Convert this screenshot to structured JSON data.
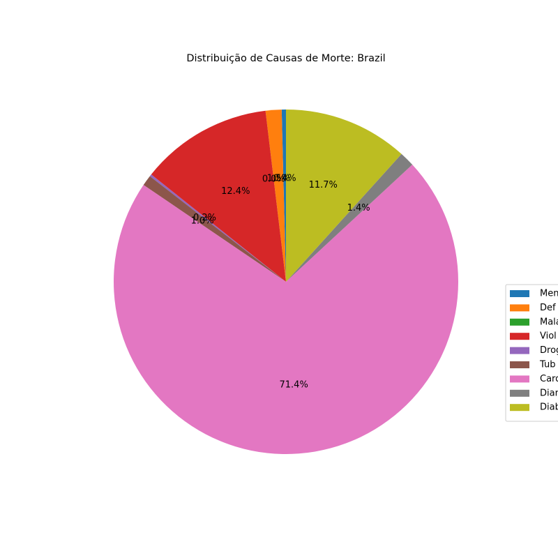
{
  "chart_data": {
    "type": "pie",
    "title": "Distribuição de Causas de Morte: Brazil",
    "legend_placement": "right",
    "start_angle_deg": 90,
    "direction": "counterclockwise",
    "slices": [
      {
        "label": "Meningite",
        "legend_text": "Men",
        "value": 0.4,
        "label_text": "0.4%",
        "color": "#1f77b4"
      },
      {
        "label": "Deficiências nutricionais",
        "legend_text": "Def",
        "value": 1.5,
        "label_text": "1.5%",
        "color": "#ff7f0e"
      },
      {
        "label": "Malária",
        "legend_text": "Mala",
        "value": 0.0,
        "label_text": "0.0%",
        "color": "#2ca02c"
      },
      {
        "label": "Violência",
        "legend_text": "Viol",
        "value": 12.4,
        "label_text": "12.4%",
        "color": "#d62728"
      },
      {
        "label": "Drogas",
        "legend_text": "Drog",
        "value": 0.2,
        "label_text": "0.2%",
        "color": "#9467bd"
      },
      {
        "label": "Tuberculose",
        "legend_text": "Tub",
        "value": 1.0,
        "label_text": "1.0%",
        "color": "#8c564b"
      },
      {
        "label": "Cardiovasculares",
        "legend_text": "Card",
        "value": 71.4,
        "label_text": "71.4%",
        "color": "#e377c2"
      },
      {
        "label": "Diarreia",
        "legend_text": "Diar",
        "value": 1.4,
        "label_text": "1.4%",
        "color": "#7f7f7f"
      },
      {
        "label": "Diabetes",
        "legend_text": "Diab",
        "value": 11.7,
        "label_text": "11.7%",
        "color": "#bcbd22"
      }
    ]
  }
}
